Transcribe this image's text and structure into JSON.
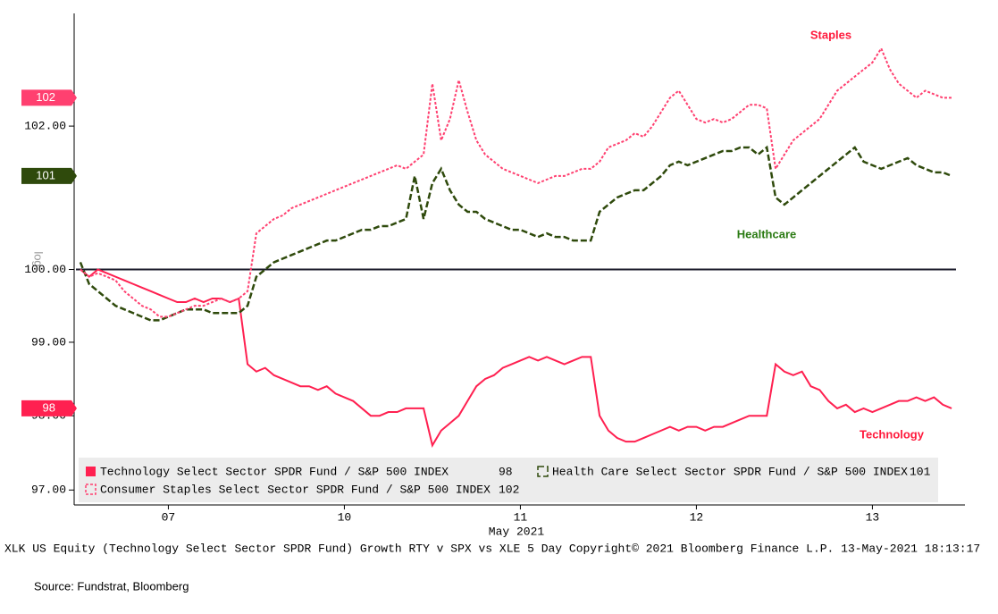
{
  "chart_data": {
    "type": "line",
    "log_scale": true,
    "ylabel": "log",
    "xlabel": "May 2021",
    "categories": [
      null,
      null,
      null,
      null,
      null,
      null,
      null,
      null,
      null,
      null,
      "07",
      null,
      null,
      null,
      null,
      null,
      null,
      null,
      null,
      null,
      null,
      null,
      null,
      null,
      null,
      null,
      null,
      null,
      null,
      null,
      "10",
      null,
      null,
      null,
      null,
      null,
      null,
      null,
      null,
      null,
      null,
      null,
      null,
      null,
      null,
      null,
      null,
      null,
      null,
      null,
      "11",
      null,
      null,
      null,
      null,
      null,
      null,
      null,
      null,
      null,
      null,
      null,
      null,
      null,
      null,
      null,
      null,
      null,
      null,
      null,
      "12",
      null,
      null,
      null,
      null,
      null,
      null,
      null,
      null,
      null,
      null,
      null,
      null,
      null,
      null,
      null,
      null,
      null,
      null,
      null,
      "13",
      null,
      null,
      null,
      null,
      null,
      null,
      null,
      null,
      null
    ],
    "ylim": [
      96.8,
      103.6
    ],
    "yticks": [
      {
        "value": 97,
        "label": "97.00"
      },
      {
        "value": 98,
        "label": "98.00"
      },
      {
        "value": 99,
        "label": "99.00"
      },
      {
        "value": 100,
        "label": "100.00"
      },
      {
        "value": 102,
        "label": "102.00"
      }
    ],
    "reference_line": 100,
    "series": [
      {
        "name": "Technology Select Sector SPDR Fund / S&P 500 INDEX",
        "last_label": "98",
        "color": "#ff2050",
        "dash": "solid",
        "values": [
          100.0,
          99.9,
          100.0,
          99.95,
          99.9,
          99.85,
          99.8,
          99.75,
          99.7,
          99.65,
          99.6,
          99.55,
          99.55,
          99.6,
          99.55,
          99.6,
          99.6,
          99.55,
          99.6,
          98.7,
          98.6,
          98.65,
          98.55,
          98.5,
          98.45,
          98.4,
          98.4,
          98.35,
          98.4,
          98.3,
          98.25,
          98.2,
          98.1,
          98.0,
          98.0,
          98.05,
          98.05,
          98.1,
          98.1,
          98.1,
          97.6,
          97.8,
          97.9,
          98.0,
          98.2,
          98.4,
          98.5,
          98.55,
          98.65,
          98.7,
          98.75,
          98.8,
          98.75,
          98.8,
          98.75,
          98.7,
          98.75,
          98.8,
          98.8,
          98.0,
          97.8,
          97.7,
          97.65,
          97.65,
          97.7,
          97.75,
          97.8,
          97.85,
          97.8,
          97.85,
          97.85,
          97.8,
          97.85,
          97.85,
          97.9,
          97.95,
          98.0,
          98.0,
          98.0,
          98.7,
          98.6,
          98.55,
          98.6,
          98.4,
          98.35,
          98.2,
          98.1,
          98.15,
          98.05,
          98.1,
          98.05,
          98.1,
          98.15,
          98.2,
          98.2,
          98.25,
          98.2,
          98.25,
          98.15,
          98.1
        ]
      },
      {
        "name": "Health Care Select Sector SPDR Fund / S&P 500 INDEX",
        "last_label": "101",
        "color": "#2f4a0c",
        "dash": "dashed",
        "values": [
          100.1,
          99.8,
          99.7,
          99.6,
          99.5,
          99.45,
          99.4,
          99.35,
          99.3,
          99.3,
          99.35,
          99.4,
          99.45,
          99.45,
          99.45,
          99.4,
          99.4,
          99.4,
          99.4,
          99.5,
          99.9,
          100.0,
          100.1,
          100.15,
          100.2,
          100.25,
          100.3,
          100.35,
          100.4,
          100.4,
          100.45,
          100.5,
          100.55,
          100.55,
          100.6,
          100.6,
          100.65,
          100.7,
          101.3,
          100.7,
          101.2,
          101.4,
          101.1,
          100.9,
          100.8,
          100.8,
          100.7,
          100.65,
          100.6,
          100.55,
          100.55,
          100.5,
          100.45,
          100.5,
          100.45,
          100.45,
          100.4,
          100.4,
          100.4,
          100.8,
          100.9,
          101.0,
          101.05,
          101.1,
          101.1,
          101.2,
          101.3,
          101.45,
          101.5,
          101.45,
          101.5,
          101.55,
          101.6,
          101.65,
          101.65,
          101.7,
          101.7,
          101.6,
          101.7,
          101.0,
          100.9,
          101.0,
          101.1,
          101.2,
          101.3,
          101.4,
          101.5,
          101.6,
          101.7,
          101.5,
          101.45,
          101.4,
          101.45,
          101.5,
          101.55,
          101.45,
          101.4,
          101.35,
          101.35,
          101.3
        ]
      },
      {
        "name": "Consumer Staples Select Sector SPDR Fund / S&P 500 INDEX",
        "last_label": "102",
        "color": "#ff4070",
        "dash": "dotted",
        "values": [
          100.0,
          99.9,
          99.95,
          99.9,
          99.85,
          99.7,
          99.6,
          99.5,
          99.45,
          99.35,
          99.35,
          99.4,
          99.45,
          99.5,
          99.5,
          99.55,
          99.6,
          99.55,
          99.6,
          99.7,
          100.5,
          100.6,
          100.7,
          100.75,
          100.85,
          100.9,
          100.95,
          101.0,
          101.05,
          101.1,
          101.15,
          101.2,
          101.25,
          101.3,
          101.35,
          101.4,
          101.45,
          101.4,
          101.5,
          101.6,
          102.6,
          101.8,
          102.1,
          102.65,
          102.2,
          101.8,
          101.6,
          101.5,
          101.4,
          101.35,
          101.3,
          101.25,
          101.2,
          101.25,
          101.3,
          101.3,
          101.35,
          101.4,
          101.4,
          101.5,
          101.7,
          101.75,
          101.8,
          101.9,
          101.85,
          102.0,
          102.2,
          102.4,
          102.5,
          102.3,
          102.1,
          102.05,
          102.1,
          102.05,
          102.1,
          102.2,
          102.3,
          102.3,
          102.25,
          101.4,
          101.6,
          101.8,
          101.9,
          102.0,
          102.1,
          102.3,
          102.5,
          102.6,
          102.7,
          102.8,
          102.9,
          103.1,
          102.8,
          102.6,
          102.5,
          102.4,
          102.5,
          102.45,
          102.4,
          102.4
        ]
      }
    ],
    "annotations": [
      "Staples",
      "Healthcare",
      "Technology"
    ],
    "footer": "XLK US Equity (Technology Select Sector SPDR Fund) Growth RTY v SPX vs XLE 5 Day  Copyright© 2021 Bloomberg Finance L.P.  13-May-2021 18:13:17"
  },
  "source": "Source: Fundstrat, Bloomberg"
}
